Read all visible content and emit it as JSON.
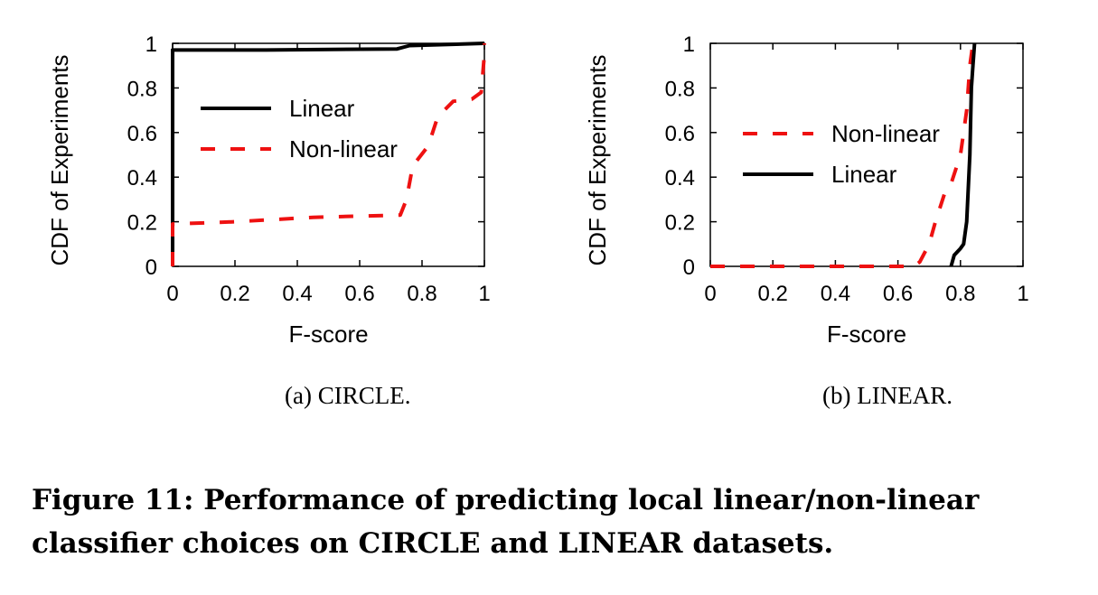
{
  "figure_caption": "Figure 11: Performance of predicting local linear/non-linear classifier choices on CIRCLE and LINEAR datasets.",
  "colors": {
    "linear": "#000000",
    "nonlinear": "#ee1111"
  },
  "chart_data": [
    {
      "type": "line",
      "subcaption": "(a)  CIRCLE.",
      "xlabel": "F-score",
      "ylabel": "CDF of Experiments",
      "xlim": [
        0,
        1
      ],
      "ylim": [
        0,
        1
      ],
      "xticks": [
        "0",
        "0.2",
        "0.4",
        "0.6",
        "0.8",
        "1"
      ],
      "yticks": [
        "0",
        "0.2",
        "0.4",
        "0.6",
        "0.8",
        "1"
      ],
      "legend_position": "center-left",
      "legend_order": [
        "Linear",
        "Non-linear"
      ],
      "series": [
        {
          "name": "Linear",
          "style": "solid",
          "points": [
            [
              0,
              0
            ],
            [
              0,
              0.97
            ],
            [
              0.3,
              0.97
            ],
            [
              0.72,
              0.975
            ],
            [
              0.76,
              0.99
            ],
            [
              1,
              1
            ]
          ]
        },
        {
          "name": "Non-linear",
          "style": "dashed",
          "points": [
            [
              0,
              0
            ],
            [
              0,
              0.19
            ],
            [
              0.2,
              0.2
            ],
            [
              0.45,
              0.22
            ],
            [
              0.73,
              0.23
            ],
            [
              0.75,
              0.3
            ],
            [
              0.77,
              0.45
            ],
            [
              0.82,
              0.54
            ],
            [
              0.85,
              0.67
            ],
            [
              0.9,
              0.74
            ],
            [
              0.96,
              0.75
            ],
            [
              0.99,
              0.78
            ],
            [
              1,
              0.95
            ],
            [
              1,
              1
            ]
          ]
        }
      ]
    },
    {
      "type": "line",
      "subcaption": "(b)  LINEAR.",
      "xlabel": "F-score",
      "ylabel": "CDF of Experiments",
      "xlim": [
        0,
        1
      ],
      "ylim": [
        0,
        1
      ],
      "xticks": [
        "0",
        "0.2",
        "0.4",
        "0.6",
        "0.8",
        "1"
      ],
      "yticks": [
        "0",
        "0.2",
        "0.4",
        "0.6",
        "0.8",
        "1"
      ],
      "legend_position": "center-left",
      "legend_order": [
        "Non-linear",
        "Linear"
      ],
      "series": [
        {
          "name": "Non-linear",
          "style": "dashed",
          "points": [
            [
              0,
              0
            ],
            [
              0.65,
              0
            ],
            [
              0.67,
              0.02
            ],
            [
              0.7,
              0.1
            ],
            [
              0.72,
              0.2
            ],
            [
              0.75,
              0.33
            ],
            [
              0.77,
              0.37
            ],
            [
              0.8,
              0.5
            ],
            [
              0.82,
              0.7
            ],
            [
              0.83,
              0.9
            ],
            [
              0.84,
              1
            ]
          ]
        },
        {
          "name": "Linear",
          "style": "solid",
          "points": [
            [
              0.77,
              0
            ],
            [
              0.78,
              0.05
            ],
            [
              0.8,
              0.08
            ],
            [
              0.81,
              0.1
            ],
            [
              0.82,
              0.2
            ],
            [
              0.83,
              0.5
            ],
            [
              0.835,
              0.8
            ],
            [
              0.84,
              0.9
            ],
            [
              0.845,
              1
            ]
          ]
        }
      ]
    }
  ]
}
